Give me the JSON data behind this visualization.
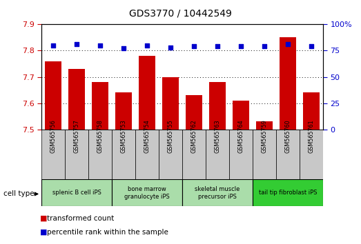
{
  "title": "GDS3770 / 10442549",
  "samples": [
    "GSM565756",
    "GSM565757",
    "GSM565758",
    "GSM565753",
    "GSM565754",
    "GSM565755",
    "GSM565762",
    "GSM565763",
    "GSM565764",
    "GSM565759",
    "GSM565760",
    "GSM565761"
  ],
  "transformed_count": [
    7.76,
    7.73,
    7.68,
    7.64,
    7.78,
    7.7,
    7.63,
    7.68,
    7.61,
    7.53,
    7.85,
    7.64
  ],
  "percentile_rank": [
    80,
    81,
    80,
    77,
    80,
    78,
    79,
    79,
    79,
    79,
    81,
    79
  ],
  "ylim_left": [
    7.5,
    7.9
  ],
  "ylim_right": [
    0,
    100
  ],
  "yticks_left": [
    7.5,
    7.6,
    7.7,
    7.8,
    7.9
  ],
  "yticks_right": [
    0,
    25,
    50,
    75,
    100
  ],
  "bar_color": "#cc0000",
  "dot_color": "#0000cc",
  "cell_groups": [
    {
      "label": "splenic B cell iPS",
      "start": 0,
      "end": 3,
      "color": "#aaddaa"
    },
    {
      "label": "bone marrow\ngranulocyte iPS",
      "start": 3,
      "end": 6,
      "color": "#aaddaa"
    },
    {
      "label": "skeletal muscle\nprecursor iPS",
      "start": 6,
      "end": 9,
      "color": "#aaddaa"
    },
    {
      "label": "tail tip fibroblast iPS",
      "start": 9,
      "end": 12,
      "color": "#33cc33"
    }
  ],
  "cell_type_label": "cell type",
  "legend_bar_label": "transformed count",
  "legend_dot_label": "percentile rank within the sample",
  "bar_width": 0.7,
  "title_fontsize": 10,
  "tick_fontsize": 8,
  "label_fontsize": 7.5,
  "sample_fontsize": 5.8
}
